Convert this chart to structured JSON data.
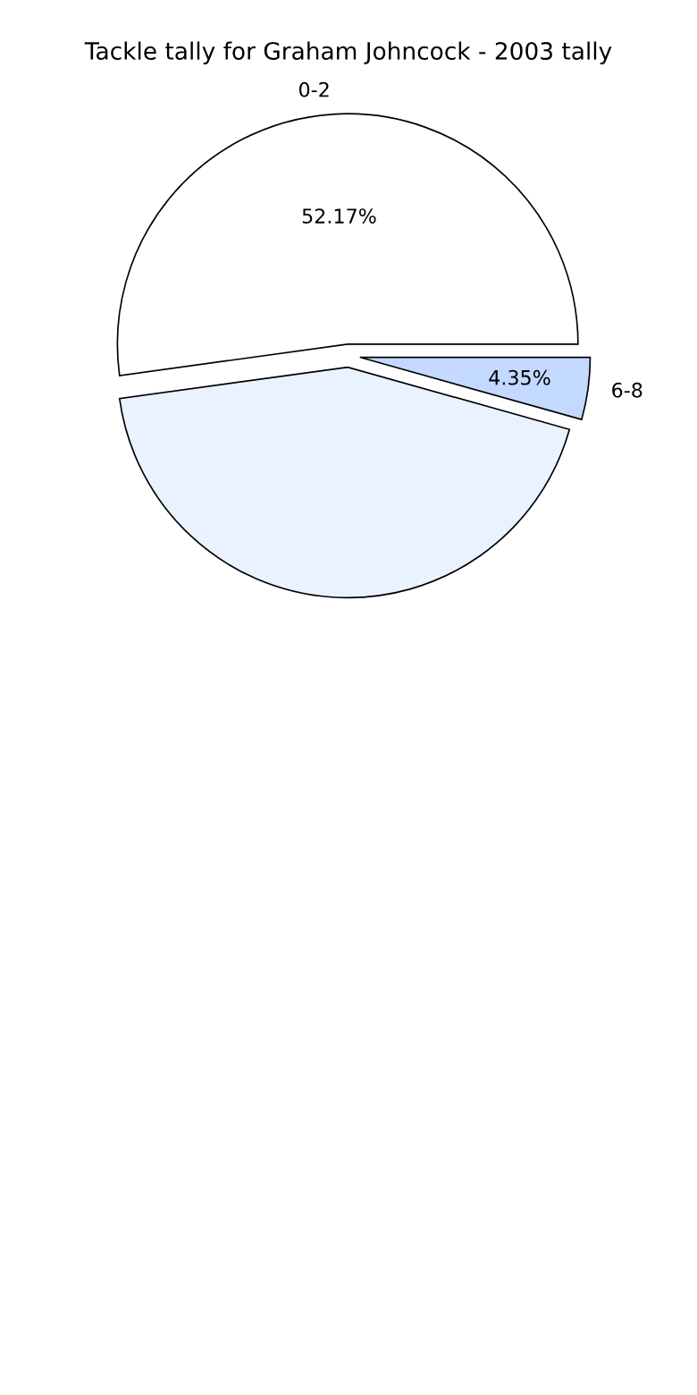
{
  "chart_data": {
    "type": "pie",
    "title": "Tackle tally for Graham Johncock - 2003 tally",
    "categories": [
      "0-2",
      null,
      "6-8"
    ],
    "values": [
      52.17,
      43.48,
      4.35
    ],
    "colors": [
      "#ffffff",
      "#eaf2ff",
      "#c4d9ff"
    ],
    "value_labels": [
      "52.17%",
      null,
      "4.35%"
    ]
  }
}
